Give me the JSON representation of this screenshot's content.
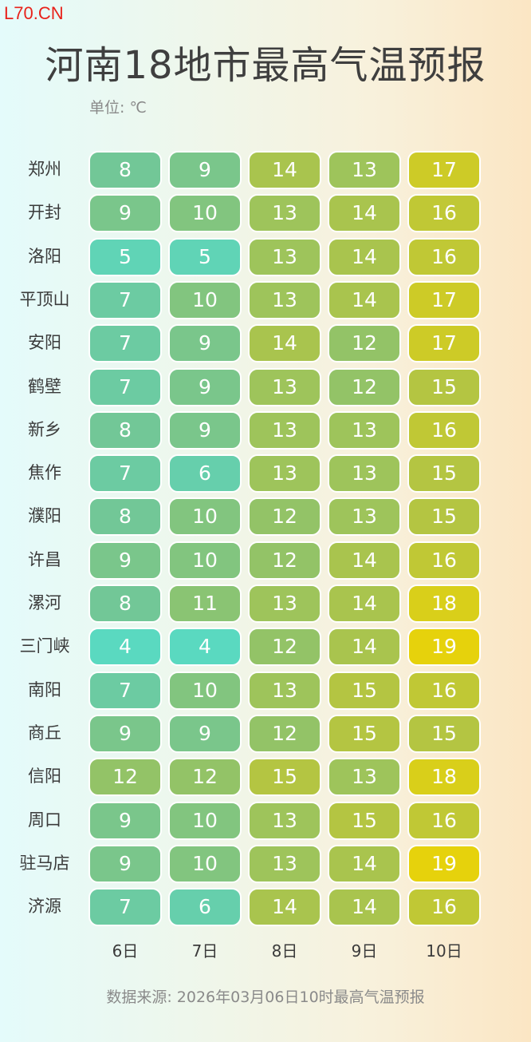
{
  "watermark": "L70.CN",
  "title": "河南18地市最高气温预报",
  "unit_label": "单位: ℃",
  "source": "数据来源: 2026年03月06日10时最高气温预报",
  "chart_data": {
    "type": "heatmap",
    "title": "河南18地市最高气温预报",
    "unit": "℃",
    "x": [
      "6日",
      "7日",
      "8日",
      "9日",
      "10日"
    ],
    "y": [
      "郑州",
      "开封",
      "洛阳",
      "平顶山",
      "安阳",
      "鹤壁",
      "新乡",
      "焦作",
      "濮阳",
      "许昌",
      "漯河",
      "三门峡",
      "南阳",
      "商丘",
      "信阳",
      "周口",
      "驻马店",
      "济源"
    ],
    "values": [
      [
        8,
        9,
        14,
        13,
        17
      ],
      [
        9,
        10,
        13,
        14,
        16
      ],
      [
        5,
        5,
        13,
        14,
        16
      ],
      [
        7,
        10,
        13,
        14,
        17
      ],
      [
        7,
        9,
        14,
        12,
        17
      ],
      [
        7,
        9,
        13,
        12,
        15
      ],
      [
        8,
        9,
        13,
        13,
        16
      ],
      [
        7,
        6,
        13,
        13,
        15
      ],
      [
        8,
        10,
        12,
        13,
        15
      ],
      [
        9,
        10,
        12,
        14,
        16
      ],
      [
        8,
        11,
        13,
        14,
        18
      ],
      [
        4,
        4,
        12,
        14,
        19
      ],
      [
        7,
        10,
        13,
        15,
        16
      ],
      [
        9,
        9,
        12,
        15,
        15
      ],
      [
        12,
        12,
        15,
        13,
        18
      ],
      [
        9,
        10,
        13,
        15,
        16
      ],
      [
        9,
        10,
        13,
        14,
        19
      ],
      [
        7,
        6,
        14,
        14,
        16
      ]
    ],
    "color_scale": {
      "min": 4,
      "max": 19,
      "stops": [
        "#5ad9c0",
        "#70c79a",
        "#8ec36d",
        "#b7c53f",
        "#e6d20c"
      ]
    }
  }
}
